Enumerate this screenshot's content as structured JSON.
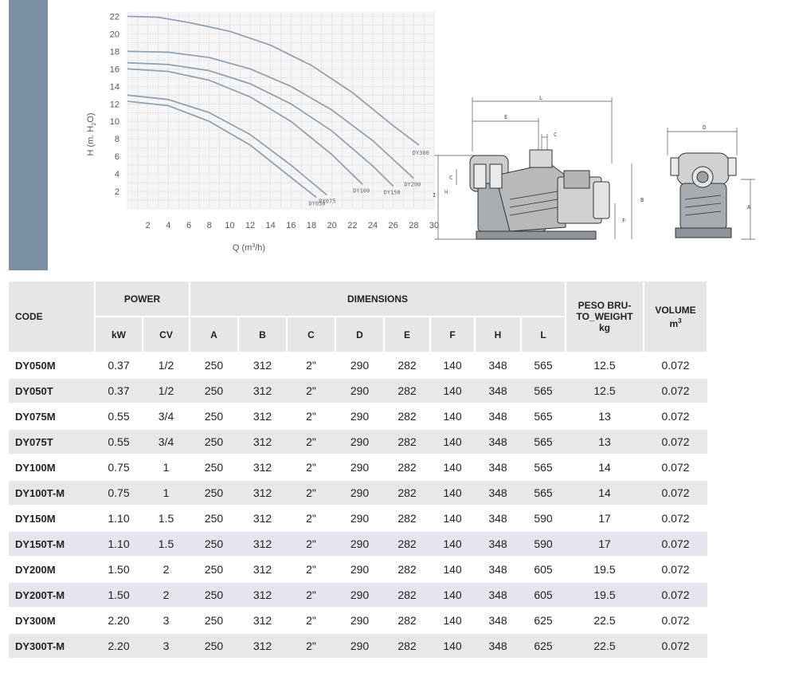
{
  "chart_data": {
    "type": "line",
    "xlabel_main": "Q (m",
    "xlabel_sup": "3",
    "xlabel_end": "/h)",
    "ylabel_main": "H (m. H",
    "ylabel_sub": "2",
    "ylabel_end": "O)",
    "x_ticks": [
      2,
      4,
      6,
      8,
      10,
      12,
      14,
      16,
      18,
      20,
      22,
      24,
      26,
      28,
      30
    ],
    "y_ticks": [
      2,
      4,
      6,
      8,
      10,
      12,
      14,
      16,
      18,
      20,
      22
    ],
    "xlim": [
      0,
      30
    ],
    "ylim": [
      0,
      22.5
    ],
    "grid": true,
    "series": [
      {
        "name": "DY050",
        "x": [
          0,
          4,
          8,
          12,
          16,
          18.5
        ],
        "y": [
          12.3,
          11.8,
          10.0,
          7.3,
          3.6,
          1.3
        ]
      },
      {
        "name": "DY075",
        "x": [
          0,
          4,
          8,
          12,
          16,
          19.5
        ],
        "y": [
          13.0,
          12.5,
          11.0,
          8.5,
          5.0,
          1.6
        ]
      },
      {
        "name": "DY100",
        "x": [
          0,
          4,
          8,
          12,
          16,
          20,
          23.0
        ],
        "y": [
          16.0,
          15.7,
          14.7,
          12.8,
          10.0,
          6.2,
          2.8
        ]
      },
      {
        "name": "DY150",
        "x": [
          0,
          4,
          8,
          12,
          16,
          20,
          24,
          26.0
        ],
        "y": [
          16.7,
          16.5,
          15.8,
          14.3,
          12.0,
          8.9,
          4.9,
          2.6
        ]
      },
      {
        "name": "DY200",
        "x": [
          0,
          4,
          8,
          12,
          16,
          20,
          24,
          28.0
        ],
        "y": [
          18.0,
          17.9,
          17.3,
          16.0,
          14.0,
          11.3,
          7.8,
          3.5
        ]
      },
      {
        "name": "DY300",
        "x": [
          0,
          3,
          6,
          10,
          14,
          18,
          22,
          26,
          28.5
        ],
        "y": [
          22.0,
          21.9,
          21.3,
          20.3,
          18.7,
          16.4,
          13.3,
          9.5,
          7.3
        ]
      }
    ],
    "extra_label": "H"
  },
  "drawings": {
    "side_view": {
      "L": "L",
      "E": "E",
      "C_top": "C",
      "C_left": "C",
      "I": "I",
      "B": "B",
      "F": "F"
    },
    "front_view": {
      "D": "D",
      "A": "A"
    }
  },
  "table": {
    "headers": {
      "code": "CODE",
      "power": "POWER",
      "dimensions": "DIMENSIONS",
      "peso_line1": "PESO BRU-",
      "peso_line2": "TO_WEIGHT",
      "peso_unit": "kg",
      "volume": "VOLUME",
      "volume_unit": "m",
      "volume_sup": "3",
      "kw": "kW",
      "cv": "CV",
      "a": "A",
      "b": "B",
      "c": "C",
      "d": "D",
      "e": "E",
      "f": "F",
      "h": "H",
      "l": "L"
    },
    "rows": [
      [
        "DY050M",
        "0.37",
        "1/2",
        "250",
        "312",
        "2\"",
        "290",
        "282",
        "140",
        "348",
        "565",
        "12.5",
        "0.072"
      ],
      [
        "DY050T",
        "0.37",
        "1/2",
        "250",
        "312",
        "2\"",
        "290",
        "282",
        "140",
        "348",
        "565",
        "12.5",
        "0.072"
      ],
      [
        "DY075M",
        "0.55",
        "3/4",
        "250",
        "312",
        "2\"",
        "290",
        "282",
        "140",
        "348",
        "565",
        "13",
        "0.072"
      ],
      [
        "DY075T",
        "0.55",
        "3/4",
        "250",
        "312",
        "2\"",
        "290",
        "282",
        "140",
        "348",
        "565",
        "13",
        "0.072"
      ],
      [
        "DY100M",
        "0.75",
        "1",
        "250",
        "312",
        "2\"",
        "290",
        "282",
        "140",
        "348",
        "565",
        "14",
        "0.072"
      ],
      [
        "DY100T-M",
        "0.75",
        "1",
        "250",
        "312",
        "2\"",
        "290",
        "282",
        "140",
        "348",
        "565",
        "14",
        "0.072"
      ],
      [
        "DY150M",
        "1.10",
        "1.5",
        "250",
        "312",
        "2\"",
        "290",
        "282",
        "140",
        "348",
        "590",
        "17",
        "0.072"
      ],
      [
        "DY150T-M",
        "1.10",
        "1.5",
        "250",
        "312",
        "2\"",
        "290",
        "282",
        "140",
        "348",
        "590",
        "17",
        "0.072"
      ],
      [
        "DY200M",
        "1.50",
        "2",
        "250",
        "312",
        "2\"",
        "290",
        "282",
        "140",
        "348",
        "605",
        "19.5",
        "0.072"
      ],
      [
        "DY200T-M",
        "1.50",
        "2",
        "250",
        "312",
        "2\"",
        "290",
        "282",
        "140",
        "348",
        "605",
        "19.5",
        "0.072"
      ],
      [
        "DY300M",
        "2.20",
        "3",
        "250",
        "312",
        "2\"",
        "290",
        "282",
        "140",
        "348",
        "625",
        "22.5",
        "0.072"
      ],
      [
        "DY300T-M",
        "2.20",
        "3",
        "250",
        "312",
        "2\"",
        "290",
        "282",
        "140",
        "348",
        "625",
        "22.5",
        "0.072"
      ]
    ]
  }
}
